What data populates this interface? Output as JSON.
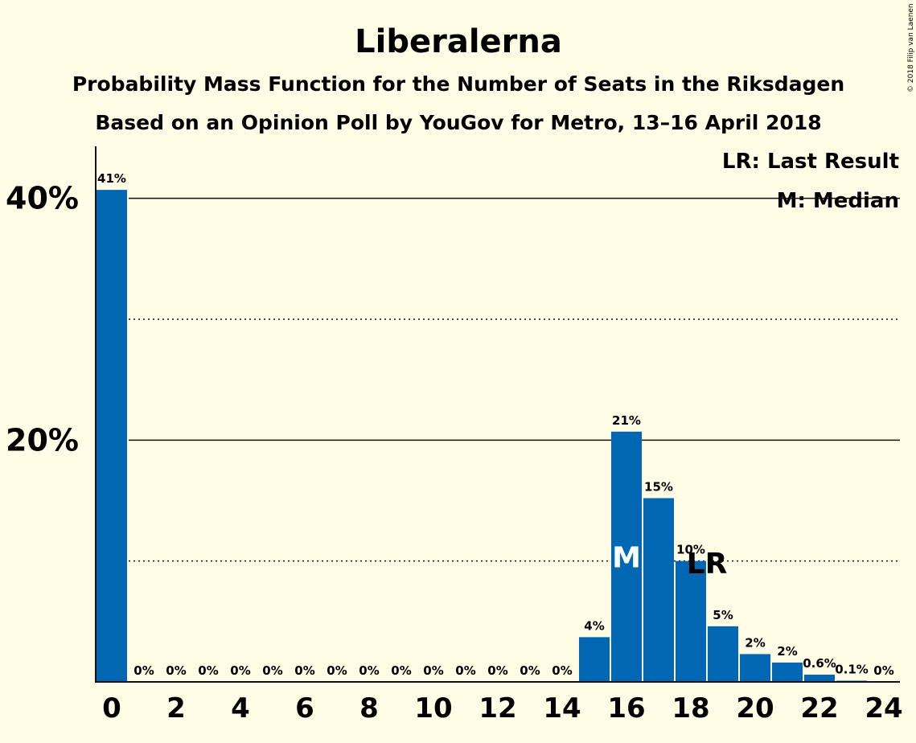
{
  "chart_data": {
    "type": "bar",
    "title": "Liberalerna",
    "subtitle": "Probability Mass Function for the Number of Seats in the Riksdagen",
    "subtitle2": "Based on an Opinion Poll by YouGov for Metro, 13–16 April 2018",
    "copyright": "© 2018 Filip van Laenen",
    "x": [
      0,
      1,
      2,
      3,
      4,
      5,
      6,
      7,
      8,
      9,
      10,
      11,
      12,
      13,
      14,
      15,
      16,
      17,
      18,
      19,
      20,
      21,
      22,
      23,
      24
    ],
    "values": [
      40.7,
      0,
      0,
      0,
      0,
      0,
      0,
      0,
      0,
      0,
      0,
      0,
      0,
      0,
      0,
      3.7,
      20.7,
      15.2,
      10.0,
      4.6,
      2.3,
      1.6,
      0.6,
      0.1,
      0
    ],
    "labels": [
      "41%",
      "0%",
      "0%",
      "0%",
      "0%",
      "0%",
      "0%",
      "0%",
      "0%",
      "0%",
      "0%",
      "0%",
      "0%",
      "0%",
      "0%",
      "4%",
      "21%",
      "15%",
      "10%",
      "5%",
      "2%",
      "2%",
      "0.6%",
      "0.1%",
      "0%"
    ],
    "xticks": [
      "0",
      "2",
      "4",
      "6",
      "8",
      "10",
      "12",
      "14",
      "16",
      "18",
      "20",
      "22",
      "24"
    ],
    "yticks": [
      {
        "value": 20,
        "label": "20%"
      },
      {
        "value": 40,
        "label": "40%"
      }
    ],
    "minor_grid": [
      10,
      30
    ],
    "ylim": [
      0,
      44.3
    ],
    "median_seat": 16,
    "median_marker": "M",
    "last_result_seat": 19,
    "last_result_marker": "LR",
    "legend": {
      "placement": "top-right",
      "lr_text": "LR: Last Result",
      "m_text": "M: Median"
    },
    "colors": {
      "bar": "#0068B3",
      "background": "#FFFDE5",
      "median_text": "#FFFFFF",
      "text": "#111111"
    }
  }
}
